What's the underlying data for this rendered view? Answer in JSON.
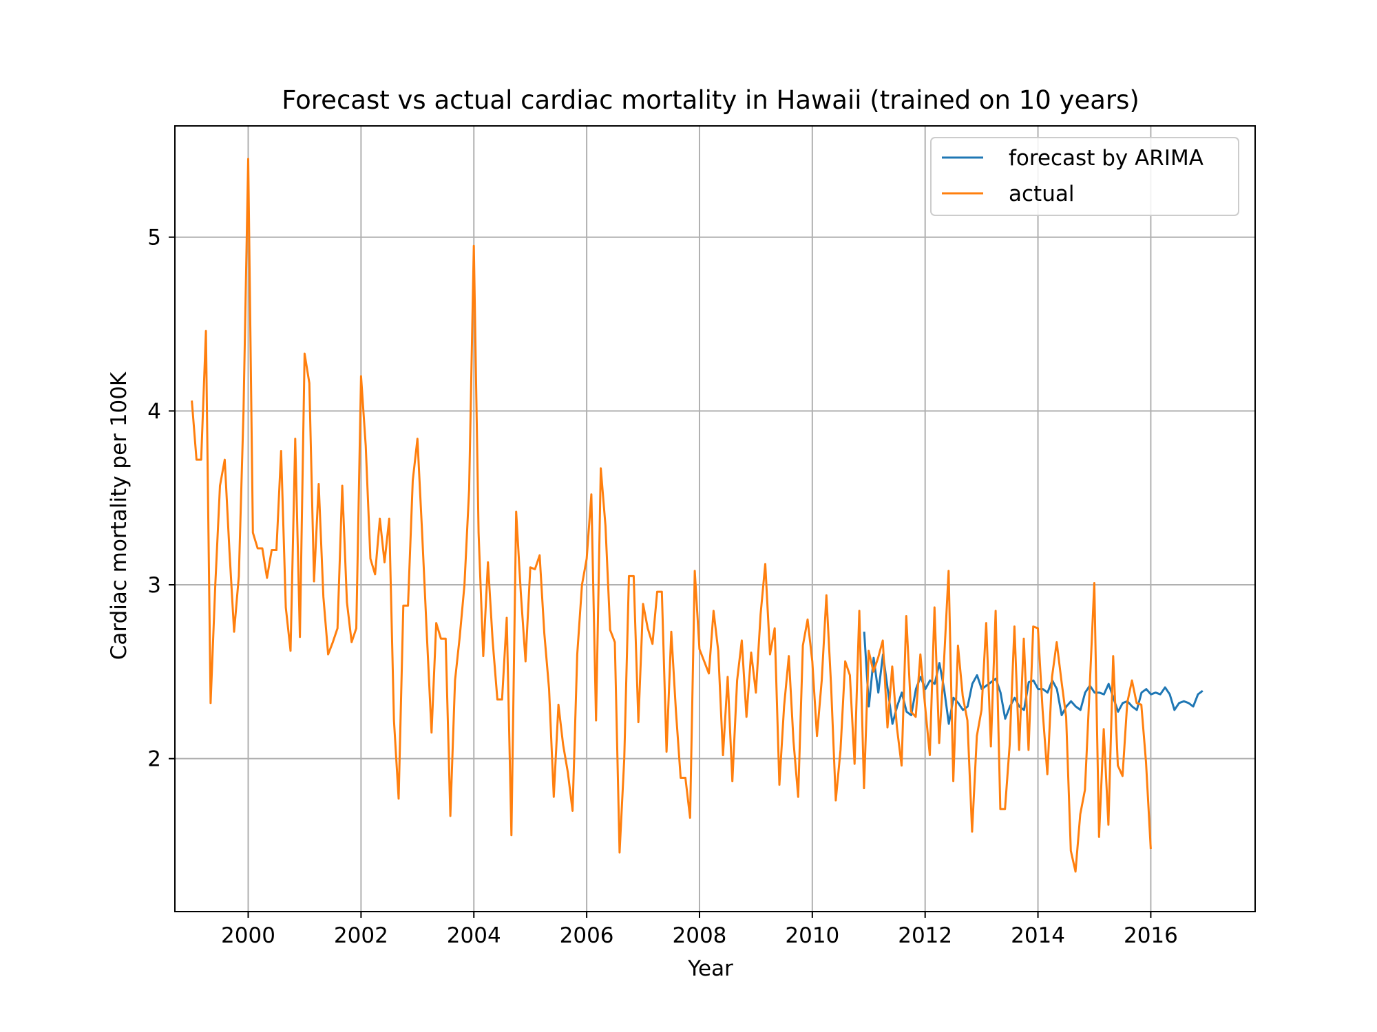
{
  "chart_data": {
    "type": "line",
    "title": "Forecast vs actual cardiac mortality in Hawaii (trained on 10 years)",
    "xlabel": "Year",
    "ylabel": "Cardiac mortality per 100K",
    "xlim": [
      1998.7,
      2017.85
    ],
    "ylim": [
      1.12,
      5.64
    ],
    "x_ticks": [
      2000,
      2002,
      2004,
      2006,
      2008,
      2010,
      2012,
      2014,
      2016
    ],
    "y_ticks": [
      2,
      3,
      4,
      5
    ],
    "grid": true,
    "legend": "top-right",
    "x_start": 1999.0,
    "x_step": 0.08333,
    "series": [
      {
        "name": "forecast by ARIMA",
        "color": "#1f77b4",
        "start": 2010.92,
        "values": [
          2.73,
          2.3,
          2.58,
          2.38,
          2.6,
          2.4,
          2.2,
          2.3,
          2.38,
          2.27,
          2.25,
          2.4,
          2.47,
          2.4,
          2.45,
          2.43,
          2.55,
          2.4,
          2.2,
          2.35,
          2.32,
          2.28,
          2.3,
          2.43,
          2.48,
          2.4,
          2.42,
          2.44,
          2.46,
          2.38,
          2.23,
          2.3,
          2.35,
          2.3,
          2.28,
          2.44,
          2.45,
          2.4,
          2.4,
          2.38,
          2.45,
          2.4,
          2.25,
          2.3,
          2.33,
          2.3,
          2.28,
          2.38,
          2.42,
          2.38,
          2.38,
          2.37,
          2.43,
          2.35,
          2.27,
          2.32,
          2.33,
          2.3,
          2.28,
          2.38,
          2.4,
          2.37,
          2.38,
          2.37,
          2.41,
          2.37,
          2.28,
          2.32,
          2.33,
          2.32,
          2.3,
          2.37,
          2.39
        ]
      },
      {
        "name": "actual",
        "color": "#ff7f0e",
        "start": 1999.0,
        "values": [
          4.06,
          3.72,
          3.72,
          4.46,
          2.32,
          3.0,
          3.57,
          3.72,
          3.2,
          2.73,
          3.05,
          4.0,
          5.45,
          3.3,
          3.21,
          3.21,
          3.04,
          3.2,
          3.2,
          3.77,
          2.87,
          2.62,
          3.84,
          2.7,
          4.33,
          4.16,
          3.02,
          3.58,
          2.93,
          2.6,
          2.67,
          2.75,
          3.57,
          2.9,
          2.67,
          2.75,
          4.2,
          3.8,
          3.15,
          3.06,
          3.38,
          3.13,
          3.38,
          2.22,
          1.77,
          2.88,
          2.88,
          3.6,
          3.84,
          3.3,
          2.72,
          2.15,
          2.78,
          2.69,
          2.69,
          1.67,
          2.45,
          2.7,
          3.0,
          3.55,
          4.95,
          3.3,
          2.59,
          3.13,
          2.68,
          2.34,
          2.34,
          2.81,
          1.56,
          3.42,
          2.95,
          2.56,
          3.1,
          3.09,
          3.17,
          2.72,
          2.4,
          1.78,
          2.31,
          2.08,
          1.92,
          1.7,
          2.6,
          3.0,
          3.15,
          3.52,
          2.22,
          3.67,
          3.34,
          2.74,
          2.67,
          1.46,
          2.0,
          3.05,
          3.05,
          2.21,
          2.89,
          2.75,
          2.66,
          2.96,
          2.96,
          2.04,
          2.73,
          2.27,
          1.89,
          1.89,
          1.66,
          3.08,
          2.63,
          2.56,
          2.49,
          2.85,
          2.62,
          2.02,
          2.47,
          1.87,
          2.45,
          2.68,
          2.24,
          2.61,
          2.38,
          2.83,
          3.12,
          2.6,
          2.75,
          1.85,
          2.3,
          2.59,
          2.1,
          1.78,
          2.65,
          2.8,
          2.56,
          2.13,
          2.45,
          2.94,
          2.42,
          1.76,
          2.05,
          2.56,
          2.48,
          1.97,
          2.85,
          1.83,
          2.62,
          2.5,
          2.58,
          2.68,
          2.18,
          2.53,
          2.18,
          1.96,
          2.82,
          2.27,
          2.24,
          2.6,
          2.3,
          2.02,
          2.87,
          2.09,
          2.55,
          3.08,
          1.87,
          2.65,
          2.36,
          2.22,
          1.58,
          2.13,
          2.28,
          2.78,
          2.07,
          2.85,
          1.71,
          1.71,
          2.08,
          2.76,
          2.05,
          2.69,
          2.05,
          2.76,
          2.75,
          2.28,
          1.91,
          2.47,
          2.67,
          2.45,
          2.24,
          1.47,
          1.35,
          1.68,
          1.82,
          2.4,
          3.01,
          1.55,
          2.17,
          1.62,
          2.59,
          1.96,
          1.9,
          2.32,
          2.45,
          2.32,
          2.31,
          1.98,
          1.48
        ]
      }
    ]
  }
}
